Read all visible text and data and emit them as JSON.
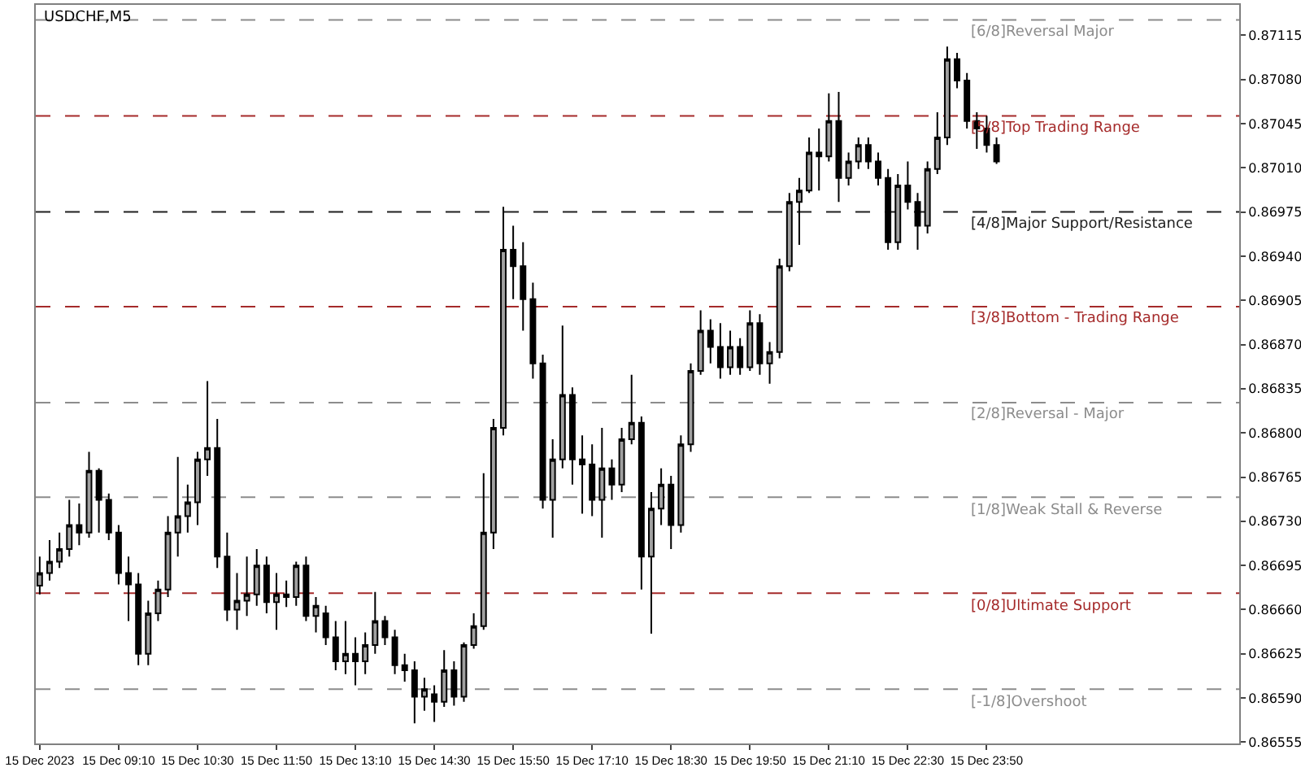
{
  "chart_data": {
    "type": "candlestick",
    "title": "USDCHF,M5",
    "color": "#000000",
    "x": [
      "2023-12-15T07:50",
      "2023-12-15T08:00",
      "2023-12-15T08:10",
      "2023-12-15T08:20",
      "2023-12-15T08:30",
      "2023-12-15T08:40",
      "2023-12-15T08:50",
      "2023-12-15T09:00",
      "2023-12-15T09:10",
      "2023-12-15T09:20",
      "2023-12-15T09:30",
      "2023-12-15T09:40",
      "2023-12-15T09:50",
      "2023-12-15T10:00",
      "2023-12-15T10:10",
      "2023-12-15T10:20",
      "2023-12-15T10:30",
      "2023-12-15T10:40",
      "2023-12-15T10:50",
      "2023-12-15T11:00",
      "2023-12-15T11:10",
      "2023-12-15T11:20",
      "2023-12-15T11:30",
      "2023-12-15T11:40",
      "2023-12-15T11:50",
      "2023-12-15T12:00",
      "2023-12-15T12:10",
      "2023-12-15T12:20",
      "2023-12-15T12:30",
      "2023-12-15T12:40",
      "2023-12-15T12:50",
      "2023-12-15T13:00",
      "2023-12-15T13:10",
      "2023-12-15T13:20",
      "2023-12-15T13:30",
      "2023-12-15T13:40",
      "2023-12-15T13:50",
      "2023-12-15T14:00",
      "2023-12-15T14:10",
      "2023-12-15T14:20",
      "2023-12-15T14:30",
      "2023-12-15T14:40",
      "2023-12-15T14:50",
      "2023-12-15T15:00",
      "2023-12-15T15:10",
      "2023-12-15T15:20",
      "2023-12-15T15:30",
      "2023-12-15T15:40",
      "2023-12-15T15:50",
      "2023-12-15T16:00",
      "2023-12-15T16:10",
      "2023-12-15T16:20",
      "2023-12-15T16:30",
      "2023-12-15T16:40",
      "2023-12-15T16:50",
      "2023-12-15T17:00",
      "2023-12-15T17:10",
      "2023-12-15T17:20",
      "2023-12-15T17:30",
      "2023-12-15T17:40",
      "2023-12-15T17:50",
      "2023-12-15T18:00",
      "2023-12-15T18:10",
      "2023-12-15T18:20",
      "2023-12-15T18:30",
      "2023-12-15T18:40",
      "2023-12-15T18:50",
      "2023-12-15T19:00",
      "2023-12-15T19:10",
      "2023-12-15T19:20",
      "2023-12-15T19:30",
      "2023-12-15T19:40",
      "2023-12-15T19:50",
      "2023-12-15T20:00",
      "2023-12-15T20:10",
      "2023-12-15T20:20",
      "2023-12-15T20:30",
      "2023-12-15T20:40",
      "2023-12-15T20:50",
      "2023-12-15T21:00",
      "2023-12-15T21:10",
      "2023-12-15T21:20",
      "2023-12-15T21:30",
      "2023-12-15T21:40",
      "2023-12-15T21:50",
      "2023-12-15T22:00",
      "2023-12-15T22:10",
      "2023-12-15T22:20",
      "2023-12-15T22:30",
      "2023-12-15T22:40",
      "2023-12-15T22:50",
      "2023-12-15T23:00",
      "2023-12-15T23:10",
      "2023-12-15T23:20",
      "2023-12-15T23:30",
      "2023-12-15T23:40",
      "2023-12-15T23:50",
      "2023-12-16T00:00"
    ],
    "ohlc": [
      [
        0.86679,
        0.86702,
        0.86672,
        0.86689
      ],
      [
        0.86689,
        0.86715,
        0.86683,
        0.86698
      ],
      [
        0.86698,
        0.86721,
        0.86693,
        0.86708
      ],
      [
        0.86708,
        0.86747,
        0.86702,
        0.86727
      ],
      [
        0.86727,
        0.86744,
        0.86711,
        0.86721
      ],
      [
        0.86721,
        0.86785,
        0.86717,
        0.8677
      ],
      [
        0.8677,
        0.86772,
        0.86721,
        0.86747
      ],
      [
        0.86747,
        0.86752,
        0.86715,
        0.86721
      ],
      [
        0.86721,
        0.86727,
        0.8668,
        0.86689
      ],
      [
        0.86689,
        0.86702,
        0.86651,
        0.8668
      ],
      [
        0.8668,
        0.86689,
        0.86616,
        0.86625
      ],
      [
        0.86625,
        0.86667,
        0.86616,
        0.86657
      ],
      [
        0.86657,
        0.86683,
        0.86651,
        0.86676
      ],
      [
        0.86676,
        0.86734,
        0.8667,
        0.86721
      ],
      [
        0.86721,
        0.86781,
        0.86702,
        0.86734
      ],
      [
        0.86734,
        0.86759,
        0.86721,
        0.86745
      ],
      [
        0.86745,
        0.86785,
        0.86727,
        0.86779
      ],
      [
        0.86779,
        0.86841,
        0.86766,
        0.86788
      ],
      [
        0.86788,
        0.86811,
        0.86693,
        0.86702
      ],
      [
        0.86702,
        0.86721,
        0.86651,
        0.8666
      ],
      [
        0.8666,
        0.86689,
        0.86644,
        0.86667
      ],
      [
        0.86667,
        0.86702,
        0.86655,
        0.86672
      ],
      [
        0.86672,
        0.86708,
        0.86663,
        0.86695
      ],
      [
        0.86695,
        0.86702,
        0.86657,
        0.86666
      ],
      [
        0.86666,
        0.86689,
        0.86644,
        0.86672
      ],
      [
        0.86672,
        0.86683,
        0.86662,
        0.8667
      ],
      [
        0.8667,
        0.86698,
        0.86663,
        0.86695
      ],
      [
        0.86695,
        0.86702,
        0.86651,
        0.86655
      ],
      [
        0.86655,
        0.8667,
        0.86642,
        0.86663
      ],
      [
        0.86657,
        0.86663,
        0.86632,
        0.86638
      ],
      [
        0.86638,
        0.86651,
        0.86612,
        0.86619
      ],
      [
        0.86619,
        0.86651,
        0.86609,
        0.86625
      ],
      [
        0.86625,
        0.86638,
        0.866,
        0.86619
      ],
      [
        0.86619,
        0.86642,
        0.86609,
        0.86632
      ],
      [
        0.86632,
        0.86674,
        0.86625,
        0.86651
      ],
      [
        0.86651,
        0.86655,
        0.86632,
        0.86638
      ],
      [
        0.86638,
        0.86644,
        0.86609,
        0.86616
      ],
      [
        0.86616,
        0.86625,
        0.86603,
        0.86612
      ],
      [
        0.86612,
        0.86619,
        0.8657,
        0.86591
      ],
      [
        0.86591,
        0.86606,
        0.8658,
        0.86597
      ],
      [
        0.86593,
        0.866,
        0.86571,
        0.86587
      ],
      [
        0.86587,
        0.86628,
        0.86583,
        0.86612
      ],
      [
        0.86612,
        0.86619,
        0.86584,
        0.86591
      ],
      [
        0.86591,
        0.86634,
        0.86587,
        0.86632
      ],
      [
        0.86632,
        0.86657,
        0.86629,
        0.86647
      ],
      [
        0.86647,
        0.86768,
        0.86644,
        0.86721
      ],
      [
        0.86721,
        0.86811,
        0.86708,
        0.86804
      ],
      [
        0.86804,
        0.86979,
        0.86798,
        0.86945
      ],
      [
        0.86945,
        0.86964,
        0.86906,
        0.86932
      ],
      [
        0.86932,
        0.86951,
        0.86881,
        0.86906
      ],
      [
        0.86906,
        0.86919,
        0.86843,
        0.86855
      ],
      [
        0.86855,
        0.86862,
        0.8674,
        0.86747
      ],
      [
        0.86747,
        0.86795,
        0.86717,
        0.86779
      ],
      [
        0.86779,
        0.86885,
        0.86772,
        0.8683
      ],
      [
        0.8683,
        0.86836,
        0.86759,
        0.86779
      ],
      [
        0.86779,
        0.86798,
        0.86736,
        0.86775
      ],
      [
        0.86775,
        0.86791,
        0.86734,
        0.86747
      ],
      [
        0.86747,
        0.86804,
        0.86717,
        0.86772
      ],
      [
        0.86772,
        0.86779,
        0.86747,
        0.86759
      ],
      [
        0.86759,
        0.86804,
        0.86753,
        0.86795
      ],
      [
        0.86795,
        0.86846,
        0.86791,
        0.86808
      ],
      [
        0.86808,
        0.86813,
        0.86676,
        0.86702
      ],
      [
        0.86702,
        0.86753,
        0.86641,
        0.8674
      ],
      [
        0.8674,
        0.86772,
        0.86727,
        0.86759
      ],
      [
        0.86759,
        0.86766,
        0.86708,
        0.86727
      ],
      [
        0.86727,
        0.86798,
        0.86721,
        0.86791
      ],
      [
        0.86791,
        0.86855,
        0.86785,
        0.86849
      ],
      [
        0.86849,
        0.86897,
        0.86846,
        0.86881
      ],
      [
        0.86881,
        0.8689,
        0.86855,
        0.86868
      ],
      [
        0.86868,
        0.86887,
        0.86843,
        0.86852
      ],
      [
        0.86852,
        0.86881,
        0.86846,
        0.86868
      ],
      [
        0.86868,
        0.86875,
        0.86846,
        0.86852
      ],
      [
        0.86852,
        0.86897,
        0.86849,
        0.86887
      ],
      [
        0.86887,
        0.86894,
        0.86846,
        0.86855
      ],
      [
        0.86855,
        0.86872,
        0.86839,
        0.86864
      ],
      [
        0.86864,
        0.86938,
        0.86859,
        0.86932
      ],
      [
        0.86932,
        0.8699,
        0.86928,
        0.86983
      ],
      [
        0.86983,
        0.87002,
        0.86949,
        0.86992
      ],
      [
        0.86992,
        0.87034,
        0.8699,
        0.87022
      ],
      [
        0.87022,
        0.87041,
        0.86992,
        0.87019
      ],
      [
        0.87019,
        0.87069,
        0.87015,
        0.87047
      ],
      [
        0.87047,
        0.8707,
        0.86983,
        0.87002
      ],
      [
        0.87002,
        0.87022,
        0.86996,
        0.87015
      ],
      [
        0.87015,
        0.87034,
        0.87009,
        0.87028
      ],
      [
        0.87028,
        0.87034,
        0.87009,
        0.87015
      ],
      [
        0.87015,
        0.87022,
        0.86996,
        0.87002
      ],
      [
        0.87002,
        0.87009,
        0.86945,
        0.86951
      ],
      [
        0.86951,
        0.87005,
        0.86945,
        0.86996
      ],
      [
        0.86996,
        0.87015,
        0.86977,
        0.86983
      ],
      [
        0.86983,
        0.8699,
        0.86945,
        0.86964
      ],
      [
        0.86964,
        0.87015,
        0.86958,
        0.87009
      ],
      [
        0.87009,
        0.87054,
        0.87005,
        0.87034
      ],
      [
        0.87034,
        0.87106,
        0.87028,
        0.87096
      ],
      [
        0.87096,
        0.87101,
        0.87073,
        0.87079
      ],
      [
        0.87079,
        0.87085,
        0.87041,
        0.87047
      ],
      [
        0.87047,
        0.87054,
        0.87025,
        0.87041
      ],
      [
        0.87041,
        0.87051,
        0.87022,
        0.87028
      ],
      [
        0.87028,
        0.87034,
        0.87013,
        0.87015
      ]
    ],
    "colors": [
      "#a0a0a0",
      "#a0a0a0",
      "#a0a0a0",
      "#a0a0a0",
      "#000000",
      "#a0a0a0",
      "#000000",
      "#000000",
      "#000000",
      "#000000",
      "#000000",
      "#a0a0a0",
      "#a0a0a0",
      "#a0a0a0",
      "#a0a0a0",
      "#a0a0a0",
      "#a0a0a0",
      "#a0a0a0",
      "#000000",
      "#000000",
      "#a0a0a0",
      "#a0a0a0",
      "#a0a0a0",
      "#000000",
      "#a0a0a0",
      "#000000",
      "#a0a0a0",
      "#000000",
      "#a0a0a0",
      "#000000",
      "#000000",
      "#a0a0a0",
      "#000000",
      "#a0a0a0",
      "#a0a0a0",
      "#000000",
      "#000000",
      "#000000",
      "#000000",
      "#a0a0a0",
      "#000000",
      "#a0a0a0",
      "#000000",
      "#a0a0a0",
      "#a0a0a0",
      "#a0a0a0",
      "#a0a0a0",
      "#a0a0a0",
      "#000000",
      "#000000",
      "#000000",
      "#000000",
      "#a0a0a0",
      "#a0a0a0",
      "#000000",
      "#000000",
      "#000000",
      "#a0a0a0",
      "#000000",
      "#a0a0a0",
      "#a0a0a0",
      "#000000",
      "#a0a0a0",
      "#a0a0a0",
      "#000000",
      "#a0a0a0",
      "#a0a0a0",
      "#a0a0a0",
      "#000000",
      "#000000",
      "#a0a0a0",
      "#000000",
      "#a0a0a0",
      "#000000",
      "#a0a0a0",
      "#a0a0a0",
      "#a0a0a0",
      "#a0a0a0",
      "#a0a0a0",
      "#000000",
      "#a0a0a0",
      "#000000",
      "#a0a0a0",
      "#a0a0a0",
      "#000000",
      "#000000",
      "#000000",
      "#a0a0a0",
      "#000000",
      "#000000",
      "#a0a0a0",
      "#a0a0a0",
      "#a0a0a0",
      "#000000",
      "#000000",
      "#000000",
      "#000000",
      "#000000"
    ],
    "xlim": [
      "2023-12-15T07:46",
      "2023-12-16T04:06"
    ],
    "xticks": [
      {
        "value": "2023-12-15T07:50",
        "label": "15 Dec 2023"
      },
      {
        "value": "2023-12-15T09:10",
        "label": "15 Dec 09:10"
      },
      {
        "value": "2023-12-15T10:30",
        "label": "15 Dec 10:30"
      },
      {
        "value": "2023-12-15T11:50",
        "label": "15 Dec 11:50"
      },
      {
        "value": "2023-12-15T13:10",
        "label": "15 Dec 13:10"
      },
      {
        "value": "2023-12-15T14:30",
        "label": "15 Dec 14:30"
      },
      {
        "value": "2023-12-15T15:50",
        "label": "15 Dec 15:50"
      },
      {
        "value": "2023-12-15T17:10",
        "label": "15 Dec 17:10"
      },
      {
        "value": "2023-12-15T18:30",
        "label": "15 Dec 18:30"
      },
      {
        "value": "2023-12-15T19:50",
        "label": "15 Dec 19:50"
      },
      {
        "value": "2023-12-15T21:10",
        "label": "15 Dec 21:10"
      },
      {
        "value": "2023-12-15T22:30",
        "label": "15 Dec 22:30"
      },
      {
        "value": "2023-12-15T23:50",
        "label": "15 Dec 23:50"
      }
    ],
    "ylim": [
      0.86554,
      0.87139
    ],
    "yticks": [
      {
        "value": 0.86555,
        "label": "0.86555"
      },
      {
        "value": 0.8659,
        "label": "0.86590"
      },
      {
        "value": 0.86625,
        "label": "0.86625"
      },
      {
        "value": 0.8666,
        "label": "0.86660"
      },
      {
        "value": 0.86695,
        "label": "0.86695"
      },
      {
        "value": 0.8673,
        "label": "0.86730"
      },
      {
        "value": 0.86765,
        "label": "0.86765"
      },
      {
        "value": 0.868,
        "label": "0.86800"
      },
      {
        "value": 0.86835,
        "label": "0.86835"
      },
      {
        "value": 0.8687,
        "label": "0.86870"
      },
      {
        "value": 0.86905,
        "label": "0.86905"
      },
      {
        "value": 0.8694,
        "label": "0.86940"
      },
      {
        "value": 0.86975,
        "label": "0.86975"
      },
      {
        "value": 0.8701,
        "label": "0.87010"
      },
      {
        "value": 0.87045,
        "label": "0.87045"
      },
      {
        "value": 0.8708,
        "label": "0.87080"
      },
      {
        "value": 0.87115,
        "label": "0.87115"
      }
    ],
    "ref_lines": [
      {
        "axis": "y",
        "value": 0.87127,
        "label": "[6/8]Reversal Major",
        "color": "#8c8c8c",
        "line_style": "dashed"
      },
      {
        "axis": "y",
        "value": 0.87051,
        "label": "[5/8]Top Trading Range",
        "color": "#a52a2a",
        "line_style": "dashed"
      },
      {
        "axis": "y",
        "value": 0.86975,
        "label": "[4/8]Major Support/Resistance",
        "color": "#202020",
        "line_style": "dashed"
      },
      {
        "axis": "y",
        "value": 0.869,
        "label": "[3/8]Bottom - Trading Range",
        "color": "#a52a2a",
        "line_style": "dashed"
      },
      {
        "axis": "y",
        "value": 0.86824,
        "label": "[2/8]Reversal - Major",
        "color": "#8c8c8c",
        "line_style": "dashed"
      },
      {
        "axis": "y",
        "value": 0.86749,
        "label": "[1/8]Weak Stall & Reverse",
        "color": "#8c8c8c",
        "line_style": "dashed"
      },
      {
        "axis": "y",
        "value": 0.86673,
        "label": "[0/8]Ultimate Support",
        "color": "#a52a2a",
        "line_style": "dashed"
      },
      {
        "axis": "y",
        "value": 0.86597,
        "label": "[-1/8]Overshoot",
        "color": "#8c8c8c",
        "line_style": "dashed"
      }
    ],
    "grid": false
  }
}
